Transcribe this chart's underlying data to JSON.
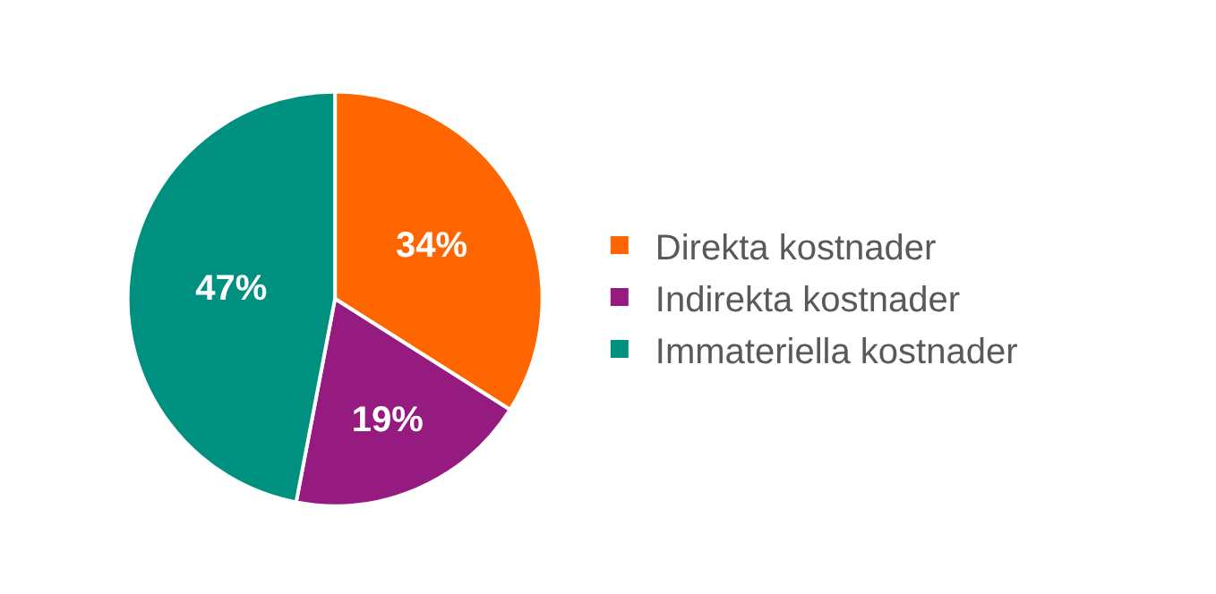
{
  "chart_data": {
    "type": "pie",
    "categories": [
      "Direkta kostnader",
      "Indirekta kostnader",
      "Immateriella kostnader"
    ],
    "values": [
      34,
      19,
      47
    ],
    "colors": [
      "#ff6600",
      "#951b81",
      "#009080"
    ],
    "value_labels": [
      "34%",
      "19%",
      "47%"
    ],
    "legend": "right"
  }
}
